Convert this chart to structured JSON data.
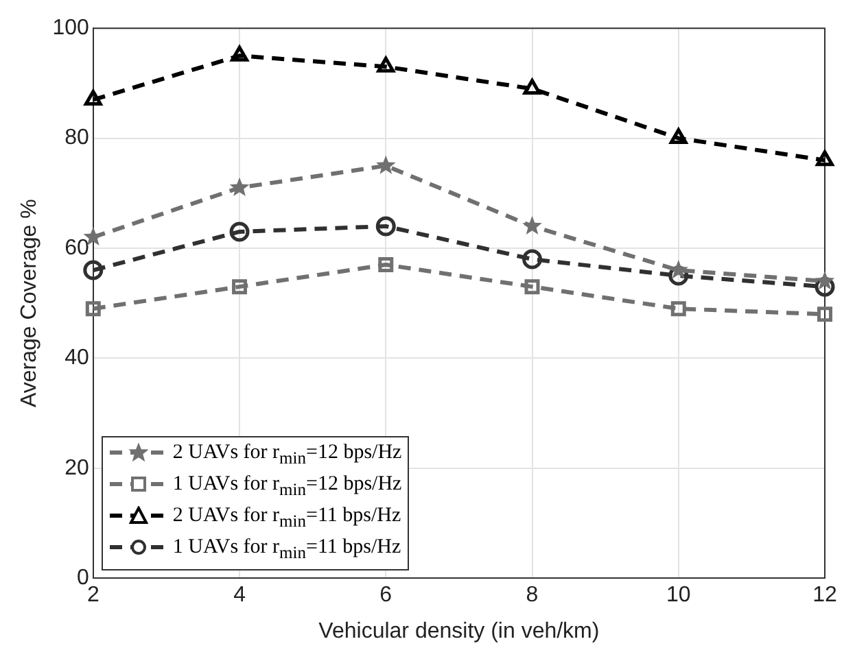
{
  "chart_data": {
    "type": "line",
    "xlabel": "Vehicular density (in veh/km)",
    "ylabel": "Average Coverage %",
    "x": [
      2,
      4,
      6,
      8,
      10,
      12
    ],
    "xlim": [
      2,
      12
    ],
    "xticks": [
      2,
      4,
      6,
      8,
      10,
      12
    ],
    "ylim": [
      0,
      100
    ],
    "yticks": [
      0,
      20,
      40,
      60,
      80,
      100
    ],
    "grid": true,
    "legend": "bottom left",
    "line_style": "dashed",
    "series": [
      {
        "name": "2 UAVs for r$_{min}$=12 bps/Hz",
        "color": "#707070",
        "marker": "star",
        "values": [
          62,
          71,
          75,
          64,
          56,
          54
        ]
      },
      {
        "name": "1 UAVs for r$_{min}$=12 bps/Hz",
        "color": "#707070",
        "marker": "square",
        "values": [
          49,
          53,
          57,
          53,
          49,
          48
        ]
      },
      {
        "name": "2 UAVs for r$_{min}$=11 bps/Hz",
        "color": "#000000",
        "marker": "triangle",
        "values": [
          87,
          95,
          93,
          89,
          80,
          76
        ]
      },
      {
        "name": "1 UAVs for r$_{min}$=11 bps/Hz",
        "color": "#303030",
        "marker": "circle",
        "values": [
          56,
          63,
          64,
          58,
          55,
          53
        ]
      }
    ]
  }
}
